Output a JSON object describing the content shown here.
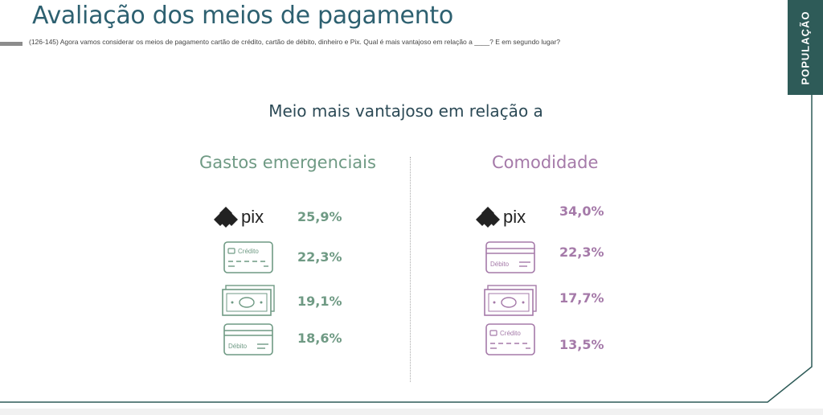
{
  "header": {
    "title": "Avaliação dos meios de pagamento",
    "question": "(126-145) Agora vamos considerar os meios de pagamento cartão de crédito, cartão de débito, dinheiro e Pix. Qual é mais vantajoso em relação a ____? E em segundo lugar?",
    "side_tab": "POPULAÇÃO"
  },
  "subtitle": "Meio mais vantajoso em relação a",
  "colors": {
    "green": "#6f9a84",
    "purple": "#a57aa9",
    "tab": "#2e5b58",
    "title": "#2d6070"
  },
  "left": {
    "title": "Gastos emergenciais",
    "items": [
      {
        "icon": "pix-logo-icon",
        "label": "pix",
        "value": "25,9%"
      },
      {
        "icon": "credit-card-icon",
        "label": "Crédito",
        "value": "22,3%"
      },
      {
        "icon": "cash-icon",
        "label": "",
        "value": "19,1%"
      },
      {
        "icon": "debit-card-icon",
        "label": "Débito",
        "value": "18,6%"
      }
    ]
  },
  "right": {
    "title": "Comodidade",
    "items": [
      {
        "icon": "pix-logo-icon",
        "label": "pix",
        "value": "34,0%"
      },
      {
        "icon": "debit-card-icon",
        "label": "Débito",
        "value": "22,3%"
      },
      {
        "icon": "cash-icon",
        "label": "",
        "value": "17,7%"
      },
      {
        "icon": "credit-card-icon",
        "label": "Crédito",
        "value": "13,5%"
      }
    ]
  }
}
